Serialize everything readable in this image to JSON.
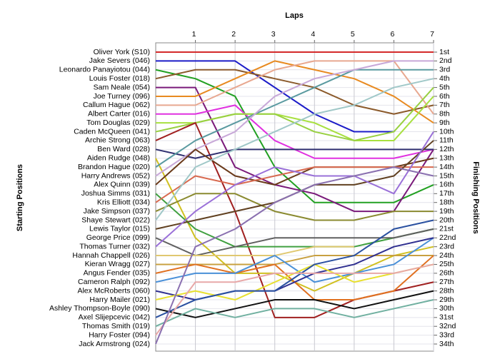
{
  "chart_data": {
    "type": "bump",
    "title": "Laps",
    "ylabel": "Starting Positions",
    "y2label": "Finishing Positions",
    "x": [
      0,
      1,
      2,
      3,
      4,
      5,
      6,
      7
    ],
    "xlim": [
      0,
      7
    ],
    "xticks": [
      1,
      2,
      3,
      4,
      5,
      6,
      7
    ],
    "ylim": [
      1,
      34
    ],
    "y_inverted": true,
    "grid": true,
    "y2ticks": [
      {
        "value": 1,
        "label": "1st"
      },
      {
        "value": 2,
        "label": "2nd"
      },
      {
        "value": 3,
        "label": "3rd"
      },
      {
        "value": 4,
        "label": "4th"
      },
      {
        "value": 5,
        "label": "5th"
      },
      {
        "value": 6,
        "label": "6th"
      },
      {
        "value": 7,
        "label": "7th"
      },
      {
        "value": 8,
        "label": "8th"
      },
      {
        "value": 9,
        "label": "9th"
      },
      {
        "value": 10,
        "label": "10th"
      },
      {
        "value": 11,
        "label": "11th"
      },
      {
        "value": 12,
        "label": "12th"
      },
      {
        "value": 13,
        "label": "13th"
      },
      {
        "value": 14,
        "label": "14th"
      },
      {
        "value": 15,
        "label": "15th"
      },
      {
        "value": 16,
        "label": "16th"
      },
      {
        "value": 17,
        "label": "17th"
      },
      {
        "value": 18,
        "label": "18th"
      },
      {
        "value": 19,
        "label": "19th"
      },
      {
        "value": 20,
        "label": "20th"
      },
      {
        "value": 21,
        "label": "21st"
      },
      {
        "value": 22,
        "label": "22nd"
      },
      {
        "value": 23,
        "label": "23rd"
      },
      {
        "value": 24,
        "label": "24th"
      },
      {
        "value": 25,
        "label": "25th"
      },
      {
        "value": 26,
        "label": "26th"
      },
      {
        "value": 27,
        "label": "27th"
      },
      {
        "value": 28,
        "label": "28th"
      },
      {
        "value": 29,
        "label": "29th"
      },
      {
        "value": 30,
        "label": "30th"
      },
      {
        "value": 31,
        "label": "31st"
      },
      {
        "value": 32,
        "label": "32nd"
      },
      {
        "value": 33,
        "label": "33rd"
      },
      {
        "value": 34,
        "label": "34th"
      }
    ],
    "series": [
      {
        "name": "Oliver York (S10)",
        "color": "#d42a2a",
        "values": [
          1,
          1,
          1,
          1,
          1,
          1,
          1,
          1
        ]
      },
      {
        "name": "Jake Severs (046)",
        "color": "#1c1cc8",
        "values": [
          2,
          2,
          2,
          5,
          8,
          10,
          10,
          null
        ]
      },
      {
        "name": "Leonardo Panayiotou (044)",
        "color": "#22a022",
        "values": [
          3,
          4,
          6,
          14,
          18,
          18,
          18,
          16
        ]
      },
      {
        "name": "Louis Foster (018)",
        "color": "#8b5a2b",
        "values": [
          4,
          3,
          3,
          4,
          5,
          7,
          8,
          7
        ]
      },
      {
        "name": "Sam Neale (054)",
        "color": "#7a1a7a",
        "values": [
          5,
          5,
          14,
          16,
          17,
          19,
          19,
          12
        ]
      },
      {
        "name": "Joe Turney (096)",
        "color": "#e88a20",
        "values": [
          6,
          6,
          4,
          2,
          3,
          4,
          6,
          9
        ]
      },
      {
        "name": "Callum Hague (062)",
        "color": "#e8a890",
        "values": [
          7,
          7,
          5,
          3,
          2,
          2,
          2,
          8
        ]
      },
      {
        "name": "Albert Carter (016)",
        "color": "#e030e0",
        "values": [
          8,
          8,
          7,
          11,
          13,
          13,
          13,
          12
        ]
      },
      {
        "name": "Tom Douglas (029)",
        "color": "#a8e040",
        "values": [
          9,
          9,
          8,
          8,
          9,
          11,
          11,
          6
        ]
      },
      {
        "name": "Caden McQueen (041)",
        "color": "#98d040",
        "values": [
          10,
          9,
          8,
          8,
          10,
          11,
          10,
          5
        ]
      },
      {
        "name": "Archie Strong (063)",
        "color": "#a02020",
        "values": [
          11,
          9,
          19,
          31,
          31,
          29,
          28,
          27
        ]
      },
      {
        "name": "Ben Ward (028)",
        "color": "#303070",
        "values": [
          12,
          13,
          12,
          12,
          12,
          12,
          12,
          12
        ]
      },
      {
        "name": "Aiden Rudge (048)",
        "color": "#d0c020",
        "values": [
          13,
          22,
          26,
          26,
          28,
          26,
          24,
          23
        ]
      },
      {
        "name": "Brandon Hague (020)",
        "color": "#5a9aa0",
        "values": [
          14,
          11,
          9,
          7,
          5,
          3,
          3,
          3
        ]
      },
      {
        "name": "Harry Andrews (052)",
        "color": "#c8a8d8",
        "values": [
          15,
          12,
          10,
          6,
          4,
          3,
          2,
          2
        ]
      },
      {
        "name": "Alex Quinn (039)",
        "color": "#6a3a1a",
        "values": [
          16,
          12,
          15,
          16,
          14,
          14,
          14,
          13
        ]
      },
      {
        "name": "Joshua Simms (031)",
        "color": "#40a040",
        "values": [
          17,
          21,
          23,
          23,
          23,
          23,
          22,
          21
        ]
      },
      {
        "name": "Kris Elliott (034)",
        "color": "#d86a50",
        "values": [
          18,
          15,
          16,
          15,
          14,
          14,
          14,
          14
        ]
      },
      {
        "name": "Jake Simpson (037)",
        "color": "#8a8a30",
        "values": [
          19,
          17,
          17,
          19,
          20,
          20,
          19,
          19
        ]
      },
      {
        "name": "Shaye Stewart (022)",
        "color": "#a0c8c8",
        "values": [
          20,
          14,
          12,
          10,
          8,
          7,
          5,
          4
        ]
      },
      {
        "name": "Lewis Taylor (015)",
        "color": "#604020",
        "values": [
          21,
          20,
          19,
          18,
          16,
          16,
          15,
          11
        ]
      },
      {
        "name": "George Price (099)",
        "color": "#606060",
        "values": [
          22,
          24,
          23,
          22,
          22,
          22,
          22,
          21
        ]
      },
      {
        "name": "Thomas Turner (032)",
        "color": "#9a70d8",
        "values": [
          23,
          19,
          16,
          14,
          15,
          15,
          17,
          10
        ]
      },
      {
        "name": "Hannah Chappell (026)",
        "color": "#e0c870",
        "values": [
          24,
          24,
          24,
          24,
          23,
          23,
          null,
          null
        ]
      },
      {
        "name": "Kieran Wragg (027)",
        "color": "#c8a040",
        "values": [
          25,
          25,
          25,
          25,
          24,
          24,
          24,
          24
        ]
      },
      {
        "name": "Angus Fender (035)",
        "color": "#e07020",
        "values": [
          26,
          25,
          26,
          25,
          29,
          29,
          28,
          24
        ]
      },
      {
        "name": "Cameron Ralph (092)",
        "color": "#4a90d8",
        "values": [
          27,
          26,
          26,
          24,
          27,
          26,
          25,
          22
        ]
      },
      {
        "name": "Alex McRoberts (060)",
        "color": "#303090",
        "values": [
          28,
          29,
          28,
          28,
          26,
          25,
          23,
          22
        ]
      },
      {
        "name": "Harry Mailer (021)",
        "color": "#e8e030",
        "values": [
          29,
          28,
          29,
          27,
          25,
          27,
          26,
          25
        ]
      },
      {
        "name": "Ashley Thompson-Boyle (090)",
        "color": "#101010",
        "values": [
          30,
          31,
          30,
          29,
          29,
          30,
          29,
          28
        ]
      },
      {
        "name": "Axel Slijepcevic (042)",
        "color": "#2a50a0",
        "values": [
          31,
          29,
          28,
          28,
          25,
          24,
          21,
          20
        ]
      },
      {
        "name": "Thomas Smith (019)",
        "color": "#70b0a0",
        "values": [
          32,
          30,
          31,
          30,
          30,
          31,
          30,
          29
        ]
      },
      {
        "name": "Harry Foster (094)",
        "color": "#e8a8a8",
        "values": [
          33,
          27,
          27,
          26,
          26,
          26,
          26,
          25
        ]
      },
      {
        "name": "Jack Armstrong (024)",
        "color": "#8a70b0",
        "values": [
          34,
          23,
          21,
          18,
          16,
          15,
          14,
          15
        ]
      }
    ]
  }
}
